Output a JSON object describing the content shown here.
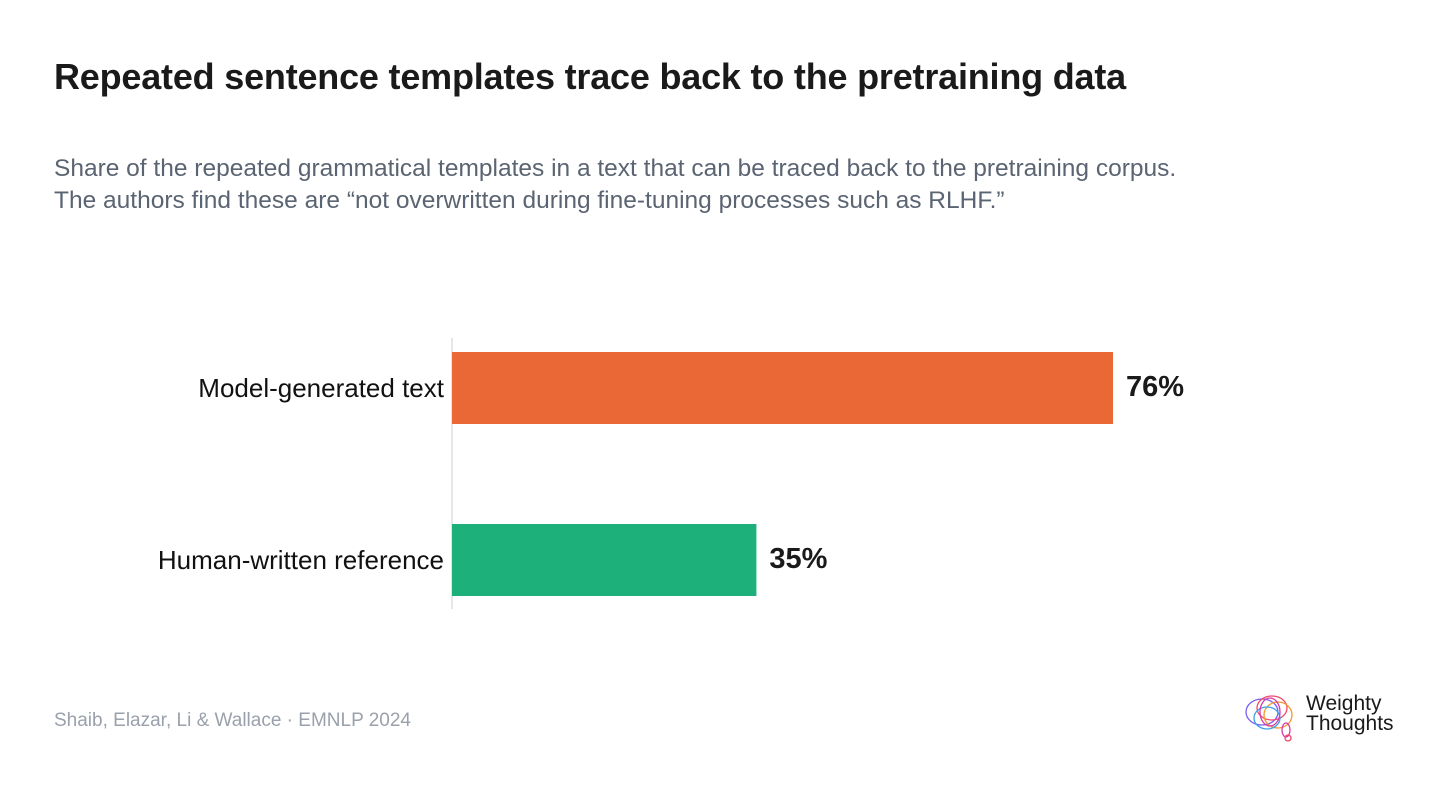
{
  "title": "Repeated sentence templates trace back to the pretraining data",
  "subtitle": {
    "line1": "Share of the repeated grammatical templates in a text that can be traced back to the pretraining corpus.",
    "line2": "The authors find these are “not overwritten during fine-tuning processes such as RLHF.”"
  },
  "chart_data": {
    "type": "bar",
    "orientation": "horizontal",
    "categories": [
      "Model-generated text",
      "Human-written reference"
    ],
    "values": [
      76,
      35
    ],
    "value_labels": [
      "76%",
      "35%"
    ],
    "colors": [
      "#e96836",
      "#1db07a"
    ],
    "xlim": [
      0,
      100
    ],
    "grid": false,
    "legend": "none"
  },
  "source": "Shaib, Elazar, Li & Wallace · EMNLP 2024",
  "logo": {
    "line1": "Weighty",
    "line2": "Thoughts"
  }
}
